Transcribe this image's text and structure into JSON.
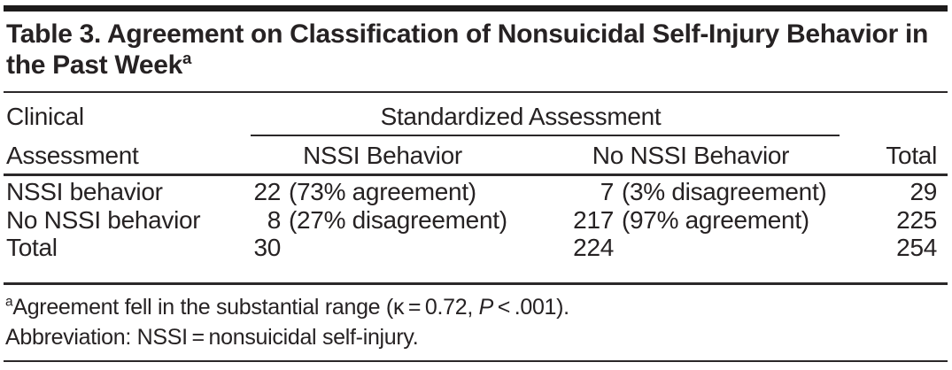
{
  "colors": {
    "ink": "#262223",
    "top_bar": "#1d1b1b",
    "background": "#ffffff"
  },
  "table": {
    "title": "Table 3. Agreement on Classification of Nonsuicidal Self-Injury Behavior in the Past Week",
    "title_superscript": "a",
    "header": {
      "row_label_line1": "Clinical",
      "row_label_line2": "Assessment",
      "spanner": "Standardized Assessment",
      "col_nssi": "NSSI Behavior",
      "col_no_nssi": "No NSSI Behavior",
      "col_total": "Total"
    },
    "rows": [
      {
        "label": "NSSI behavior",
        "nssi_num": "22",
        "nssi_note": "(73% agreement)",
        "no_nssi_num": "7",
        "no_nssi_note": "(3% disagreement)",
        "total": "29"
      },
      {
        "label": "No NSSI behavior",
        "nssi_num": "8",
        "nssi_note": "(27% disagreement)",
        "no_nssi_num": "217",
        "no_nssi_note": "(97% agreement)",
        "total": "225"
      },
      {
        "label": "Total",
        "nssi_num": "30",
        "nssi_note": "",
        "no_nssi_num": "224",
        "no_nssi_note": "",
        "total": "254"
      }
    ],
    "footnotes": {
      "marker": "a",
      "line1_pre": "Agreement fell in the substantial range (κ = 0.72, ",
      "line1_italic": "P",
      "line1_post": " < .001).",
      "line2": "Abbreviation: NSSI = nonsuicidal self-injury."
    }
  }
}
